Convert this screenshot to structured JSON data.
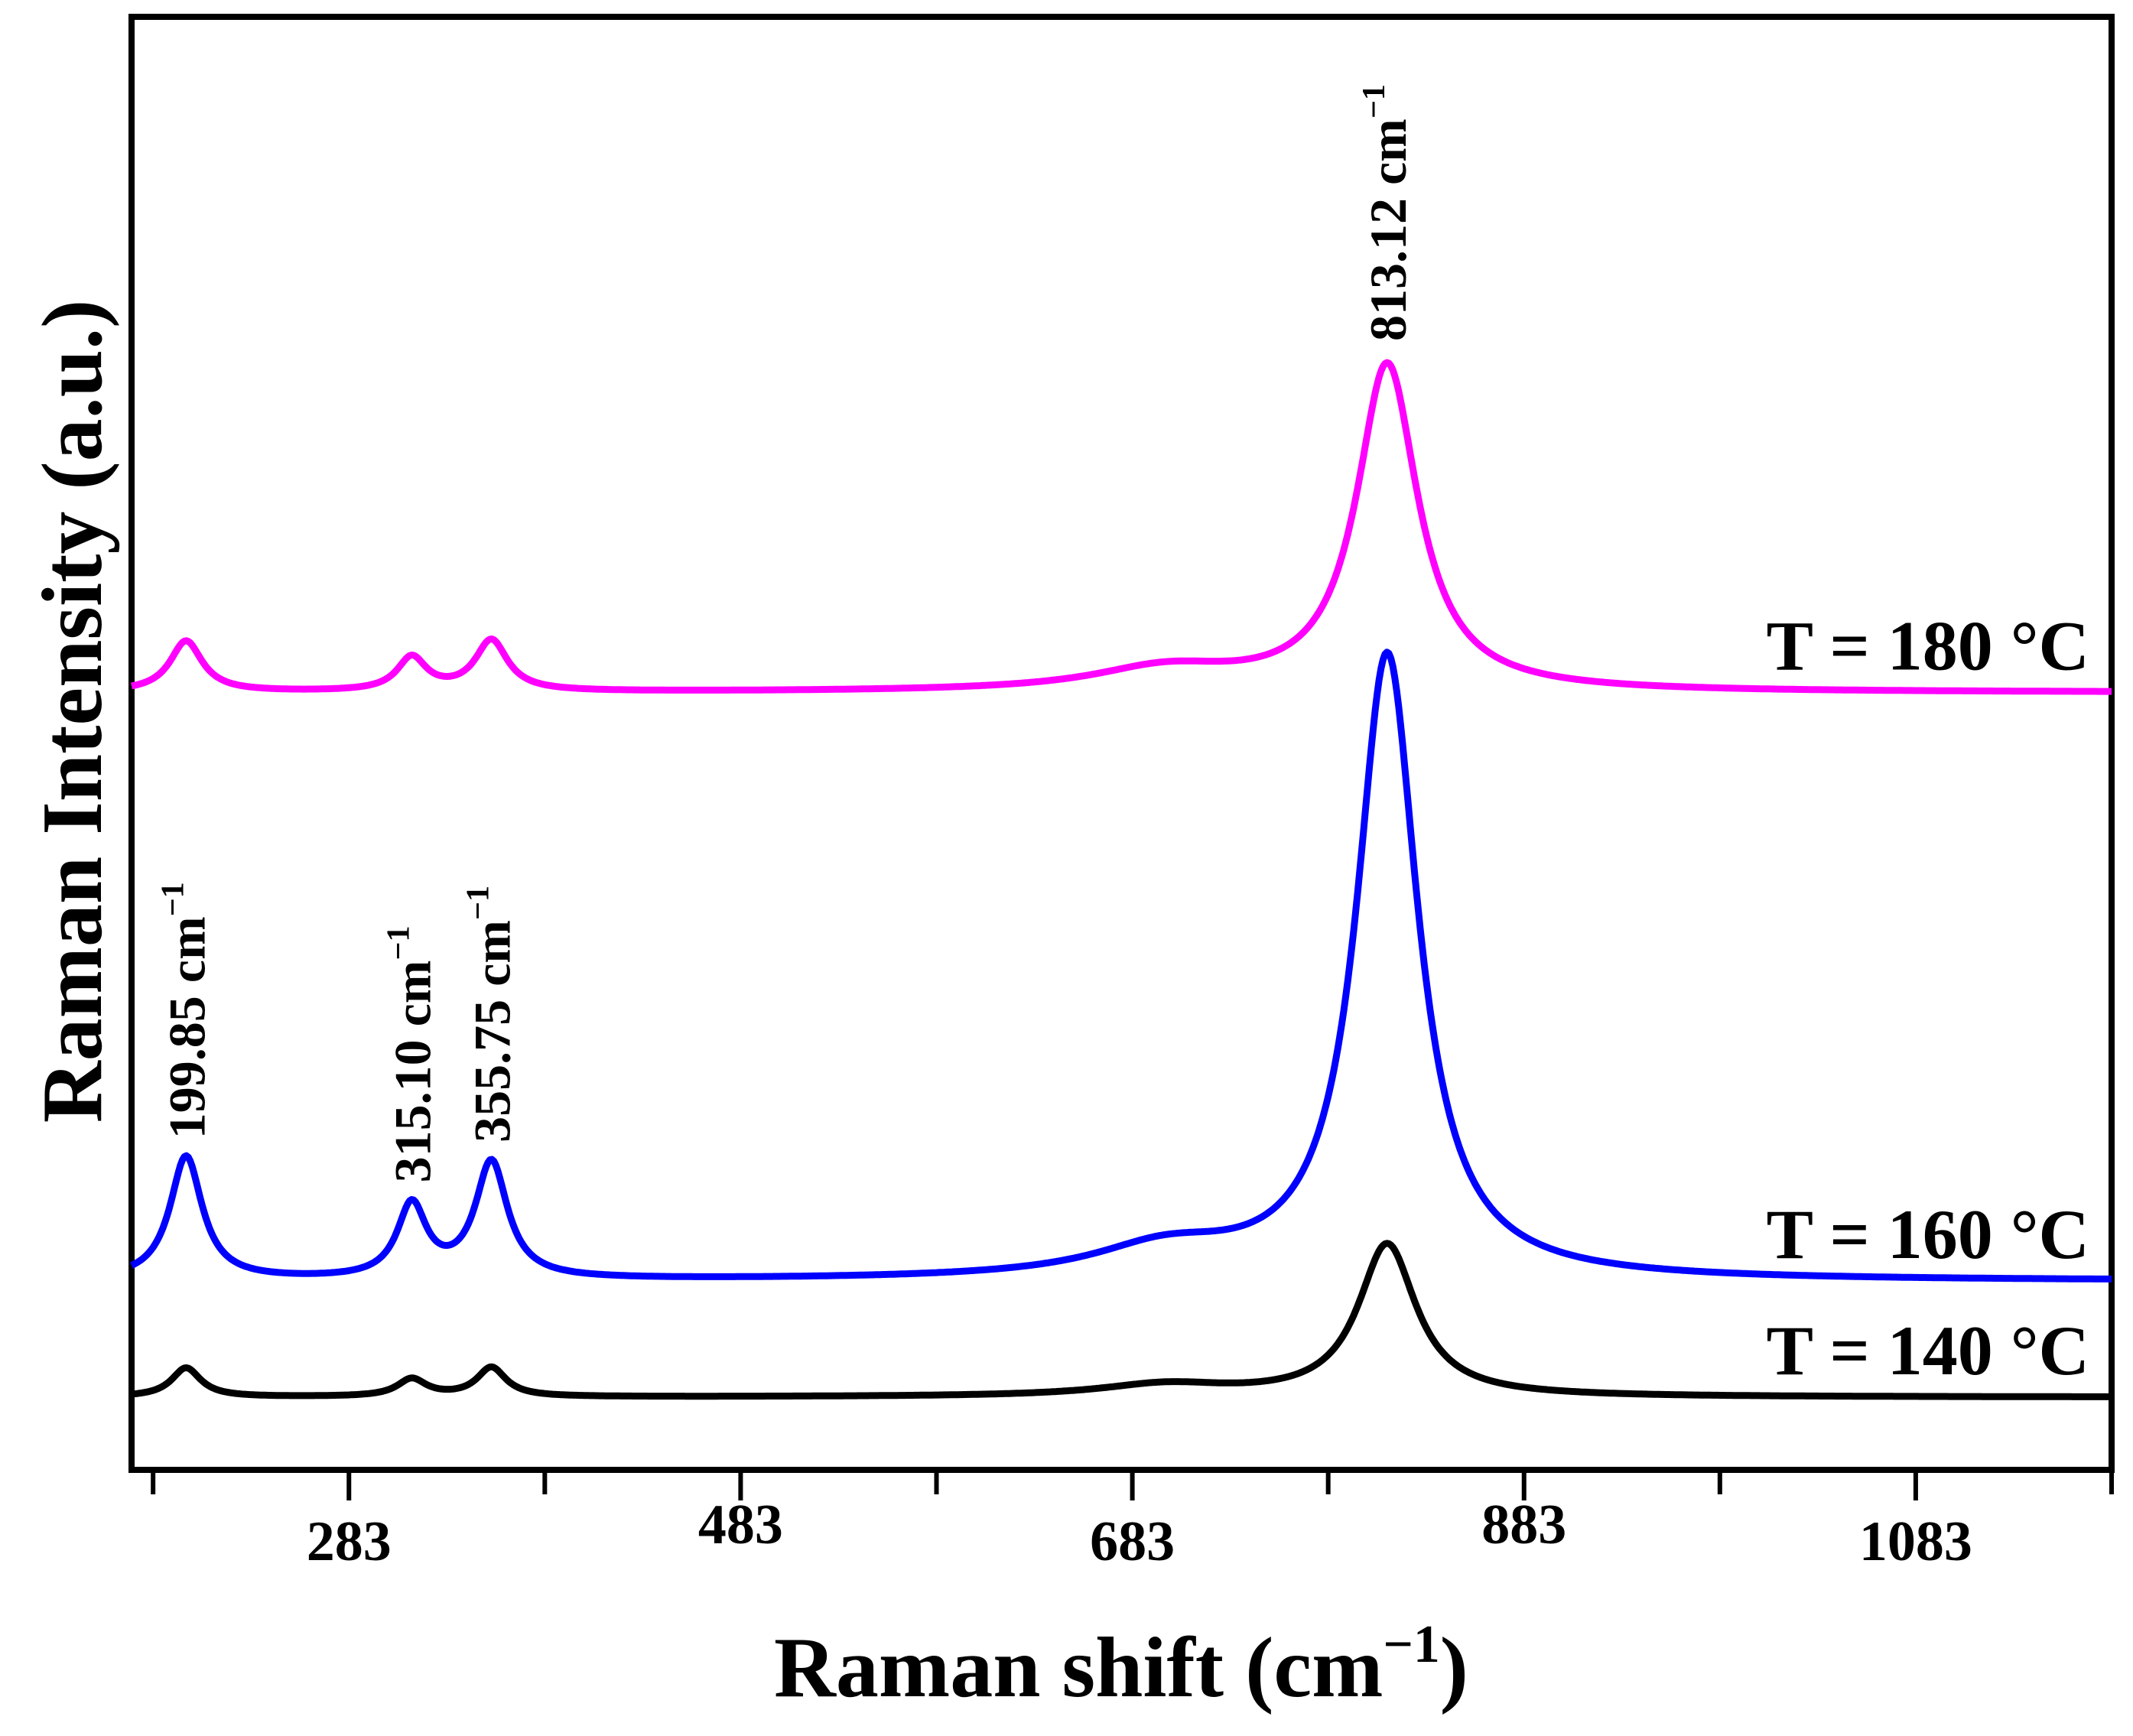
{
  "chart_data": {
    "type": "line",
    "title": "",
    "xlabel": "Raman shift (cm",
    "xlabel_sup": "−1",
    "xlabel_tail": ")",
    "ylabel": "Raman Intensity (a.u.)",
    "xlim": [
      172,
      1183
    ],
    "ylim": [
      0,
      1
    ],
    "grid": false,
    "y_ticks_shown": false,
    "x_ticks": [
      283,
      483,
      683,
      883,
      1083
    ],
    "x_tick_labels": [
      "283",
      "483",
      "683",
      "883",
      "1083"
    ],
    "series": [
      {
        "name": "T = 140 °C",
        "label": "T = 140 °C",
        "color": "#000000",
        "baseline": 0.05,
        "peaks": [
          {
            "x": 199.85,
            "h": 0.02,
            "w": 9
          },
          {
            "x": 315.1,
            "h": 0.012,
            "w": 9
          },
          {
            "x": 355.75,
            "h": 0.02,
            "w": 9
          },
          {
            "x": 700,
            "h": 0.008,
            "w": 40
          },
          {
            "x": 813.12,
            "h": 0.105,
            "w": 18
          }
        ]
      },
      {
        "name": "T = 160 °C",
        "label": "T = 160 °C",
        "color": "#0000ff",
        "baseline": 0.13,
        "peaks": [
          {
            "x": 199.85,
            "h": 0.085,
            "w": 10
          },
          {
            "x": 315.1,
            "h": 0.05,
            "w": 9
          },
          {
            "x": 355.75,
            "h": 0.08,
            "w": 10
          },
          {
            "x": 700,
            "h": 0.02,
            "w": 45
          },
          {
            "x": 813.12,
            "h": 0.43,
            "w": 19
          }
        ]
      },
      {
        "name": "T = 180 °C",
        "label": "T = 180 °C",
        "color": "#ff00ff",
        "baseline": 0.535,
        "peaks": [
          {
            "x": 199.85,
            "h": 0.035,
            "w": 10
          },
          {
            "x": 315.1,
            "h": 0.023,
            "w": 9
          },
          {
            "x": 355.75,
            "h": 0.035,
            "w": 10
          },
          {
            "x": 700,
            "h": 0.015,
            "w": 45
          },
          {
            "x": 813.12,
            "h": 0.225,
            "w": 19
          }
        ]
      }
    ],
    "annotations": [
      {
        "text": "199.85 cm",
        "sup": "−1",
        "x": 199.85
      },
      {
        "text": "315.10 cm",
        "sup": "−1",
        "x": 315.1
      },
      {
        "text": "355.75 cm",
        "sup": "−1",
        "x": 355.75
      },
      {
        "text": "813.12 cm",
        "sup": "−1",
        "x": 813.12
      }
    ]
  }
}
